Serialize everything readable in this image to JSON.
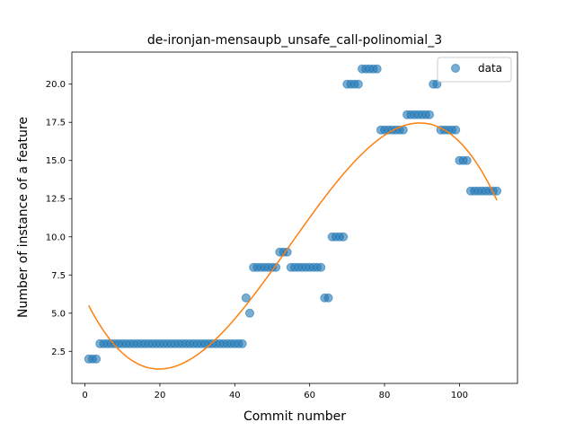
{
  "chart_data": {
    "type": "scatter",
    "title": "de-ironjan-mensaupb_unsafe_call-polinomial_3",
    "xlabel": "Commit number",
    "ylabel": "Number of instance of a feature",
    "xlim": [
      -3.5,
      115.5
    ],
    "ylim": [
      0.4,
      22.1
    ],
    "xticks": [
      0,
      20,
      40,
      60,
      80,
      100
    ],
    "xtick_labels": [
      "0",
      "20",
      "40",
      "60",
      "80",
      "100"
    ],
    "yticks": [
      2.5,
      5.0,
      7.5,
      10.0,
      12.5,
      15.0,
      17.5,
      20.0
    ],
    "ytick_labels": [
      "2.5",
      "5.0",
      "7.5",
      "10.0",
      "12.5",
      "15.0",
      "17.5",
      "20.0"
    ],
    "grid": false,
    "legend_position": "top-right",
    "series": [
      {
        "name": "data",
        "kind": "scatter",
        "color": "#1f77b4",
        "alpha": 0.6,
        "x": [
          1,
          2,
          3,
          4,
          5,
          6,
          7,
          8,
          9,
          10,
          11,
          12,
          13,
          14,
          15,
          16,
          17,
          18,
          19,
          20,
          21,
          22,
          23,
          24,
          25,
          26,
          27,
          28,
          29,
          30,
          31,
          32,
          33,
          34,
          35,
          36,
          37,
          38,
          39,
          40,
          41,
          42,
          43,
          44,
          45,
          46,
          47,
          48,
          49,
          50,
          51,
          52,
          53,
          54,
          55,
          56,
          57,
          58,
          59,
          60,
          61,
          62,
          63,
          64,
          65,
          66,
          67,
          68,
          69,
          70,
          71,
          72,
          73,
          74,
          75,
          76,
          77,
          78,
          79,
          80,
          81,
          82,
          83,
          84,
          85,
          86,
          87,
          88,
          89,
          90,
          91,
          92,
          93,
          94,
          95,
          96,
          97,
          98,
          99,
          100,
          101,
          102,
          103,
          104,
          105,
          106,
          107,
          108,
          109,
          110
        ],
        "y": [
          2,
          2,
          2,
          3,
          3,
          3,
          3,
          3,
          3,
          3,
          3,
          3,
          3,
          3,
          3,
          3,
          3,
          3,
          3,
          3,
          3,
          3,
          3,
          3,
          3,
          3,
          3,
          3,
          3,
          3,
          3,
          3,
          3,
          3,
          3,
          3,
          3,
          3,
          3,
          3,
          3,
          3,
          6,
          5,
          8,
          8,
          8,
          8,
          8,
          8,
          8,
          9,
          9,
          9,
          8,
          8,
          8,
          8,
          8,
          8,
          8,
          8,
          8,
          6,
          6,
          10,
          10,
          10,
          10,
          20,
          20,
          20,
          20,
          21,
          21,
          21,
          21,
          21,
          17,
          17,
          17,
          17,
          17,
          17,
          17,
          18,
          18,
          18,
          18,
          18,
          18,
          18,
          20,
          20,
          17,
          17,
          17,
          17,
          17,
          15,
          15,
          15,
          13,
          13,
          13,
          13,
          13,
          13,
          13,
          13
        ]
      },
      {
        "name": "",
        "kind": "line",
        "color": "#ff7f0e",
        "x_range": [
          1,
          110
        ],
        "fit_points_x": [
          1,
          20,
          40,
          60,
          80,
          89,
          100,
          110
        ],
        "fit_points_y": [
          5.5,
          1.35,
          4.6,
          11.3,
          16.6,
          17.5,
          16.2,
          12.4
        ]
      }
    ]
  }
}
